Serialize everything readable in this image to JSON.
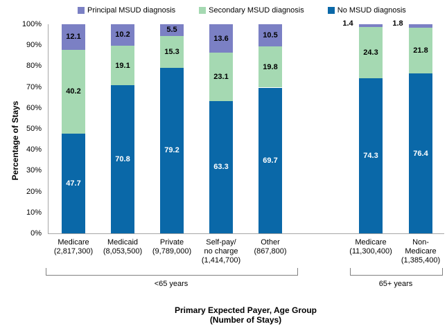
{
  "legend": [
    {
      "name": "principal",
      "label": "Principal MSUD diagnosis",
      "color": "#7b80c4"
    },
    {
      "name": "secondary",
      "label": "Secondary MSUD diagnosis",
      "color": "#a5d9b2"
    },
    {
      "name": "no-msud",
      "label": "No MSUD diagnosis",
      "color": "#0a68a8"
    }
  ],
  "axis": {
    "y_title": "Percentage of Stays",
    "x_title_line1": "Primary Expected Payer, Age Group",
    "x_title_line2": "(Number of Stays)"
  },
  "chart_data": {
    "type": "bar",
    "stacked": true,
    "title": "",
    "ylabel": "Percentage of Stays",
    "xlabel": "Primary Expected Payer, Age Group (Number of Stays)",
    "ylim": [
      0,
      100
    ],
    "grid": false,
    "legend_position": "top",
    "yticks": [
      "0%",
      "10%",
      "20%",
      "30%",
      "40%",
      "50%",
      "60%",
      "70%",
      "80%",
      "90%",
      "100%"
    ],
    "categories": [
      {
        "lines": [
          "Medicare",
          "(2,817,300)"
        ],
        "group": "<65 years"
      },
      {
        "lines": [
          "Medicaid",
          "(8,053,500)"
        ],
        "group": "<65 years"
      },
      {
        "lines": [
          "Private",
          "(9,789,000)"
        ],
        "group": "<65 years"
      },
      {
        "lines": [
          "Self-pay/",
          "no charge",
          "(1,414,700)"
        ],
        "group": "<65 years"
      },
      {
        "lines": [
          "Other",
          "(867,800)"
        ],
        "group": "<65 years"
      },
      {
        "lines": [
          "Medicare",
          "(11,300,400)"
        ],
        "group": "65+ years"
      },
      {
        "lines": [
          "Non-",
          "Medicare",
          "(1,385,400)"
        ],
        "group": "65+ years"
      }
    ],
    "series": [
      {
        "name": "No MSUD diagnosis",
        "color": "#0a68a8",
        "label_color": "#ffffff",
        "values": [
          47.7,
          70.8,
          79.2,
          63.3,
          69.7,
          74.3,
          76.4
        ]
      },
      {
        "name": "Secondary MSUD diagnosis",
        "color": "#a5d9b2",
        "label_color": "#000000",
        "values": [
          40.2,
          19.1,
          15.3,
          23.1,
          19.8,
          24.3,
          21.8
        ]
      },
      {
        "name": "Principal MSUD diagnosis",
        "color": "#7b80c4",
        "label_color": "#000000",
        "values": [
          12.1,
          10.2,
          5.5,
          13.6,
          10.5,
          1.4,
          1.8
        ]
      }
    ],
    "groups": [
      {
        "label": "<65 years",
        "from": 0,
        "to": 4
      },
      {
        "label": "65+ years",
        "from": 5,
        "to": 6
      }
    ]
  }
}
